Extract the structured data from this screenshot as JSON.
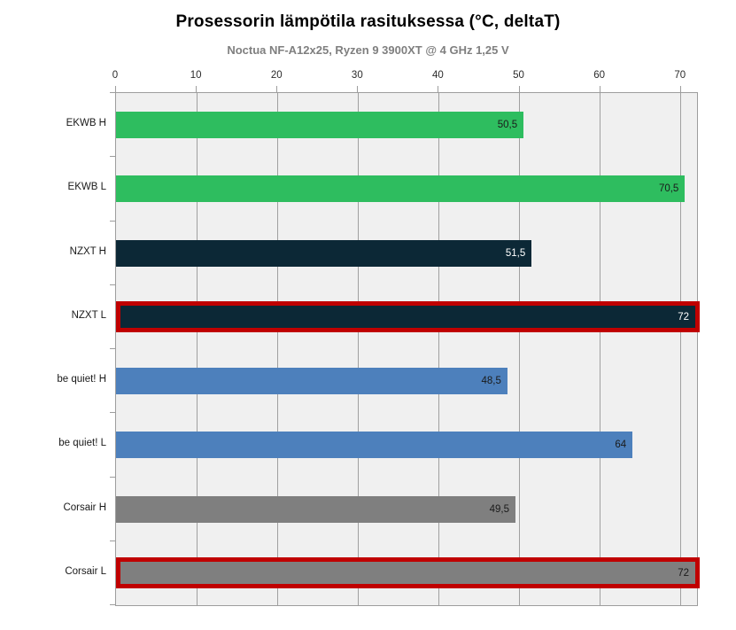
{
  "header": {
    "title": "Prosessorin lämpötila rasituksessa (°C, deltaT)",
    "subtitle": "Noctua NF-A12x25, Ryzen 9 3900XT @ 4 GHz 1,25 V"
  },
  "chart_data": {
    "type": "bar",
    "orientation": "horizontal",
    "title": "Prosessorin lämpötila rasituksessa (°C, deltaT)",
    "subtitle": "Noctua NF-A12x25, Ryzen 9 3900XT @ 4 GHz 1,25 V",
    "categories": [
      "EKWB H",
      "EKWB L",
      "NZXT H",
      "NZXT L",
      "be quiet! H",
      "be quiet! L",
      "Corsair H",
      "Corsair L"
    ],
    "values": [
      50.5,
      70.5,
      51.5,
      72,
      48.5,
      64,
      49.5,
      72
    ],
    "value_labels": [
      "50,5",
      "70,5",
      "51,5",
      "72",
      "48,5",
      "64",
      "49,5",
      "72"
    ],
    "bar_colors": [
      "#2ebd5f",
      "#2ebd5f",
      "#0c2836",
      "#0c2836",
      "#4d80bc",
      "#4d80bc",
      "#7f7f7f",
      "#7f7f7f"
    ],
    "value_label_colors": [
      "#1a1a1a",
      "#1a1a1a",
      "#ffffff",
      "#ffffff",
      "#1a1a1a",
      "#1a1a1a",
      "#1a1a1a",
      "#1a1a1a"
    ],
    "highlighted": [
      false,
      false,
      false,
      true,
      false,
      false,
      false,
      true
    ],
    "highlight_border_color": "#c00000",
    "xlim": [
      0,
      72
    ],
    "ticks": [
      0,
      10,
      20,
      30,
      40,
      50,
      60,
      70
    ],
    "tick_labels": [
      "0",
      "10",
      "20",
      "30",
      "40",
      "50",
      "60",
      "70"
    ],
    "xlabel": "",
    "ylabel": "",
    "grid": true,
    "legend": false,
    "plot_background": "#f0f0f0",
    "grid_color": "#a0a0a0"
  }
}
